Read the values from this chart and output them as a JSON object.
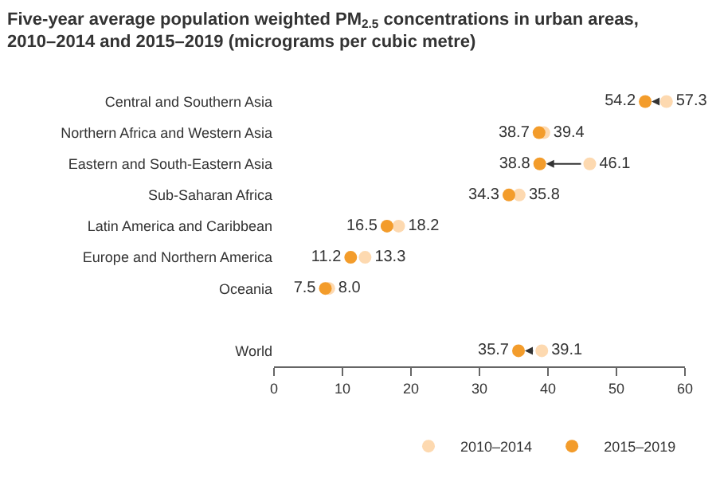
{
  "chart_data": {
    "type": "scatter",
    "title": "Five-year average population weighted PM$_{2.5}$ concentrations in urban areas,\n2010–2014 and 2015–2019 (micrograms per cubic metre)",
    "orientation": "horizontal",
    "categories": [
      "Central and Southern Asia",
      "Northern Africa and Western Asia",
      "Eastern and South-Eastern Asia",
      "Sub-Saharan Africa",
      "Latin America and Caribbean",
      "Europe and Northern America",
      "Oceania",
      null,
      "World"
    ],
    "series": [
      {
        "name": "2010–2014",
        "color": "#fdd9b0",
        "values": [
          57.3,
          39.4,
          46.1,
          35.8,
          18.2,
          13.3,
          8.0,
          null,
          39.1
        ],
        "value_labels": [
          "57.3",
          "39.4",
          "46.1",
          "35.8",
          "18.2",
          "13.3",
          "8.0",
          null,
          "39.1"
        ]
      },
      {
        "name": "2015–2019",
        "color": "#f39c2b",
        "values": [
          54.2,
          38.7,
          38.8,
          34.3,
          16.5,
          11.2,
          7.5,
          null,
          35.7
        ]
      }
    ],
    "xlim": [
      0,
      60
    ],
    "xticks": [
      0,
      10,
      20,
      30,
      40,
      50,
      60
    ],
    "data_labels": true,
    "marker": "circle",
    "grid": false,
    "legend": "bottom right"
  }
}
